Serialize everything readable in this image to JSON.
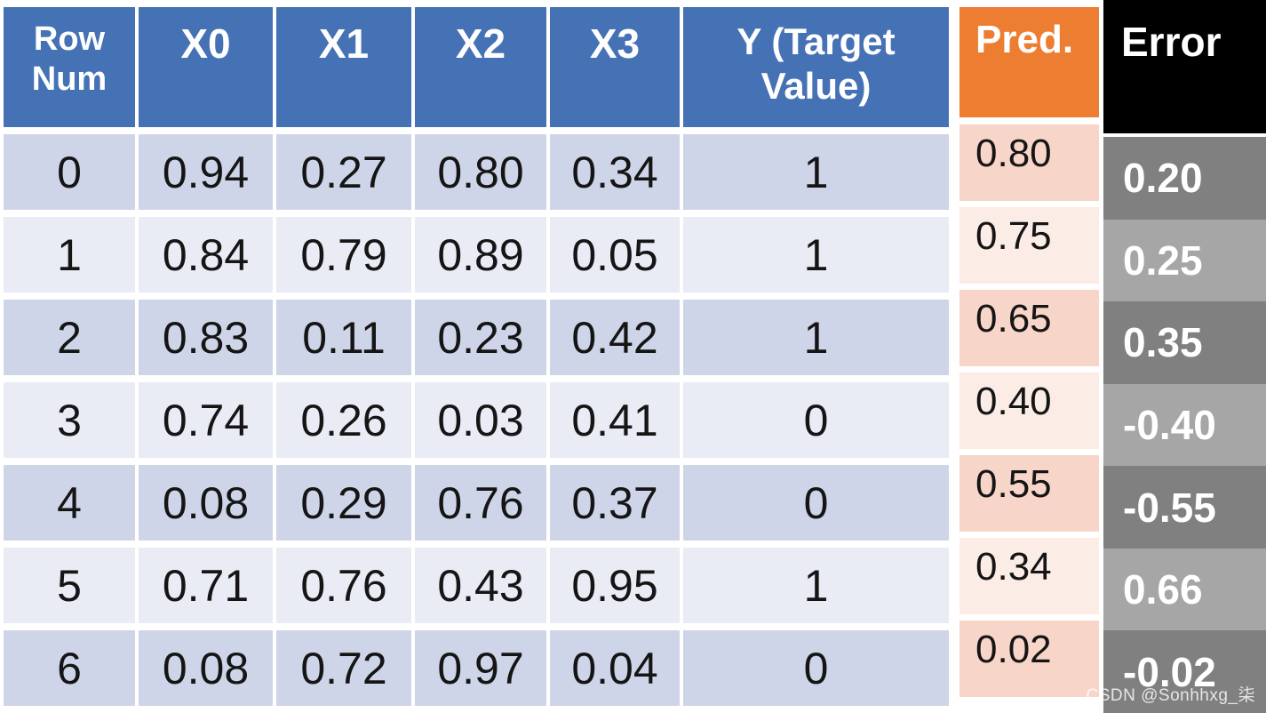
{
  "chart_data": {
    "type": "table",
    "title": "",
    "columns": [
      "Row Num",
      "X0",
      "X1",
      "X2",
      "X3",
      "Y (Target Value)",
      "Pred.",
      "Error"
    ],
    "rows": [
      [
        0,
        0.94,
        0.27,
        0.8,
        0.34,
        1,
        0.8,
        0.2
      ],
      [
        1,
        0.84,
        0.79,
        0.89,
        0.05,
        1,
        0.75,
        0.25
      ],
      [
        2,
        0.83,
        0.11,
        0.23,
        0.42,
        1,
        0.65,
        0.35
      ],
      [
        3,
        0.74,
        0.26,
        0.03,
        0.41,
        0,
        0.4,
        -0.4
      ],
      [
        4,
        0.08,
        0.29,
        0.76,
        0.37,
        0,
        0.55,
        -0.55
      ],
      [
        5,
        0.71,
        0.76,
        0.43,
        0.95,
        1,
        0.34,
        0.66
      ],
      [
        6,
        0.08,
        0.72,
        0.97,
        0.04,
        0,
        0.02,
        -0.02
      ]
    ]
  },
  "table": {
    "columns": [
      {
        "id": "row-num",
        "label": "Row Num"
      },
      {
        "id": "x0",
        "label": "X0"
      },
      {
        "id": "x1",
        "label": "X1"
      },
      {
        "id": "x2",
        "label": "X2"
      },
      {
        "id": "x3",
        "label": "X3"
      },
      {
        "id": "y-target",
        "label": "Y (Target Value)"
      }
    ],
    "rows": [
      [
        "0",
        "0.94",
        "0.27",
        "0.80",
        "0.34",
        "1"
      ],
      [
        "1",
        "0.84",
        "0.79",
        "0.89",
        "0.05",
        "1"
      ],
      [
        "2",
        "0.83",
        "0.11",
        "0.23",
        "0.42",
        "1"
      ],
      [
        "3",
        "0.74",
        "0.26",
        "0.03",
        "0.41",
        "0"
      ],
      [
        "4",
        "0.08",
        "0.29",
        "0.76",
        "0.37",
        "0"
      ],
      [
        "5",
        "0.71",
        "0.76",
        "0.43",
        "0.95",
        "1"
      ],
      [
        "6",
        "0.08",
        "0.72",
        "0.97",
        "0.04",
        "0"
      ]
    ]
  },
  "pred_column": {
    "header": "Pred.",
    "values": [
      "0.80",
      "0.75",
      "0.65",
      "0.40",
      "0.55",
      "0.34",
      "0.02"
    ]
  },
  "error_column": {
    "header": "Error",
    "values": [
      "0.20",
      "0.25",
      "0.35",
      "-0.40",
      "-0.55",
      "0.66",
      "-0.02"
    ]
  },
  "watermark": {
    "text": "CSDN @Sonhhxg_柒"
  },
  "colors": {
    "header_blue": "#4571B5",
    "row_dark": "#CFD5E8",
    "row_light": "#E9EBF5",
    "pred_header_orange": "#ED7D31",
    "pred_cell_dark": "#F7D5C9",
    "pred_cell_light": "#FBECE6",
    "error_header_black": "#000000",
    "error_cell_dark": "#808080",
    "error_cell_light": "#A6A6A6"
  }
}
